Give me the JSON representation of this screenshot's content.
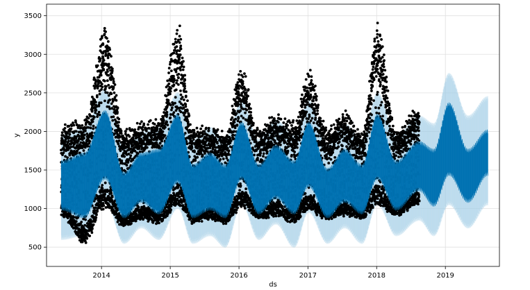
{
  "chart_data": {
    "type": "scatter",
    "xlabel": "ds",
    "ylabel": "y",
    "xlim": [
      "2013-03-15",
      "2019-10-15"
    ],
    "ylim": [
      250,
      3650
    ],
    "grid": true,
    "x_ticks": [
      "2014",
      "2015",
      "2016",
      "2017",
      "2018",
      "2019"
    ],
    "y_ticks": [
      "500",
      "1000",
      "1500",
      "2000",
      "2500",
      "3000",
      "3500"
    ],
    "observed_range": [
      "2013-06-01",
      "2018-08-15"
    ],
    "forecast_end": "2019-08-15",
    "series": [
      {
        "role": "observations",
        "color": "#000000"
      },
      {
        "role": "forecast",
        "color": "#0072B2"
      },
      {
        "role": "uncertainty-interval",
        "color": "#a6cfe8"
      }
    ],
    "envelope": [
      {
        "x": "2013-06-01",
        "obs_low": 900,
        "obs_high": 2100,
        "fc_low": 1000,
        "fc_high": 1600,
        "band_low": 650,
        "band_high": 1900
      },
      {
        "x": "2013-10-01",
        "obs_low": 550,
        "obs_high": 2200,
        "fc_low": 900,
        "fc_high": 1700,
        "band_low": 700,
        "band_high": 2000
      },
      {
        "x": "2014-01-20",
        "obs_low": 1000,
        "obs_high": 3400,
        "fc_low": 1400,
        "fc_high": 2250,
        "band_low": 1150,
        "band_high": 2500
      },
      {
        "x": "2014-05-01",
        "obs_low": 750,
        "obs_high": 2050,
        "fc_low": 900,
        "fc_high": 1450,
        "band_low": 600,
        "band_high": 1750
      },
      {
        "x": "2014-08-01",
        "obs_low": 850,
        "obs_high": 2150,
        "fc_low": 1100,
        "fc_high": 1700,
        "band_low": 800,
        "band_high": 1950
      },
      {
        "x": "2014-11-01",
        "obs_low": 800,
        "obs_high": 2200,
        "fc_low": 950,
        "fc_high": 1750,
        "band_low": 650,
        "band_high": 2000
      },
      {
        "x": "2015-02-10",
        "obs_low": 1000,
        "obs_high": 3450,
        "fc_low": 1350,
        "fc_high": 2200,
        "band_low": 1050,
        "band_high": 2450
      },
      {
        "x": "2015-05-01",
        "obs_low": 800,
        "obs_high": 2100,
        "fc_low": 900,
        "fc_high": 1550,
        "band_low": 600,
        "band_high": 1850
      },
      {
        "x": "2015-08-01",
        "obs_low": 850,
        "obs_high": 2100,
        "fc_low": 1000,
        "fc_high": 1700,
        "band_low": 700,
        "band_high": 2000
      },
      {
        "x": "2015-10-20",
        "obs_low": 800,
        "obs_high": 2000,
        "fc_low": 900,
        "fc_high": 1550,
        "band_low": 550,
        "band_high": 1850
      },
      {
        "x": "2016-01-15",
        "obs_low": 1000,
        "obs_high": 2850,
        "fc_low": 1400,
        "fc_high": 2100,
        "band_low": 1100,
        "band_high": 2350
      },
      {
        "x": "2016-04-15",
        "obs_low": 850,
        "obs_high": 2050,
        "fc_low": 950,
        "fc_high": 1550,
        "band_low": 650,
        "band_high": 1850
      },
      {
        "x": "2016-07-15",
        "obs_low": 900,
        "obs_high": 2250,
        "fc_low": 1150,
        "fc_high": 1800,
        "band_low": 850,
        "band_high": 2100
      },
      {
        "x": "2016-10-20",
        "obs_low": 800,
        "obs_high": 2150,
        "fc_low": 950,
        "fc_high": 1600,
        "band_low": 550,
        "band_high": 1900
      },
      {
        "x": "2017-01-05",
        "obs_low": 950,
        "obs_high": 2850,
        "fc_low": 1300,
        "fc_high": 2100,
        "band_low": 1000,
        "band_high": 2350
      },
      {
        "x": "2017-04-15",
        "obs_low": 850,
        "obs_high": 2050,
        "fc_low": 900,
        "fc_high": 1500,
        "band_low": 600,
        "band_high": 1800
      },
      {
        "x": "2017-07-15",
        "obs_low": 900,
        "obs_high": 2300,
        "fc_low": 1100,
        "fc_high": 1750,
        "band_low": 800,
        "band_high": 2050
      },
      {
        "x": "2017-10-15",
        "obs_low": 850,
        "obs_high": 2000,
        "fc_low": 950,
        "fc_high": 1550,
        "band_low": 600,
        "band_high": 1850
      },
      {
        "x": "2018-01-05",
        "obs_low": 1000,
        "obs_high": 3450,
        "fc_low": 1400,
        "fc_high": 2200,
        "band_low": 1100,
        "band_high": 2450
      },
      {
        "x": "2018-04-15",
        "obs_low": 900,
        "obs_high": 2050,
        "fc_low": 1000,
        "fc_high": 1600,
        "band_low": 700,
        "band_high": 1900
      },
      {
        "x": "2018-08-15",
        "obs_low": 1050,
        "obs_high": 2350,
        "fc_low": 1250,
        "fc_high": 1850,
        "band_low": 900,
        "band_high": 2150
      },
      {
        "x": "2018-11-01",
        "obs_low": null,
        "obs_high": null,
        "fc_low": 1050,
        "fc_high": 1750,
        "band_low": 700,
        "band_high": 2050
      },
      {
        "x": "2019-01-20",
        "obs_low": null,
        "obs_high": null,
        "fc_low": 1450,
        "fc_high": 2350,
        "band_low": 1100,
        "band_high": 2700
      },
      {
        "x": "2019-05-01",
        "obs_low": null,
        "obs_high": null,
        "fc_low": 1100,
        "fc_high": 1750,
        "band_low": 800,
        "band_high": 2150
      },
      {
        "x": "2019-08-15",
        "obs_low": null,
        "obs_high": null,
        "fc_low": 1450,
        "fc_high": 2000,
        "band_low": 1100,
        "band_high": 2400
      }
    ]
  }
}
